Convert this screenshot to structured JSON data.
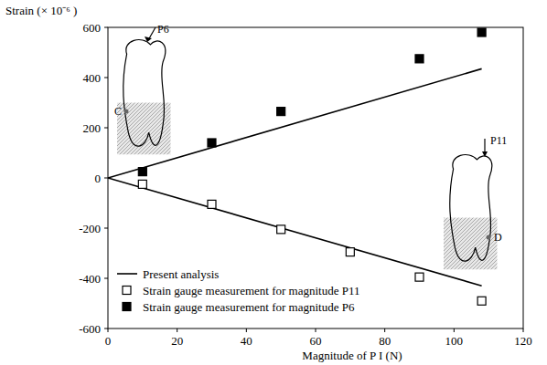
{
  "chart_data": {
    "type": "scatter",
    "y_label": "Strain (× 10⁻⁶ )",
    "x_label": "Magnitude of P I (N)",
    "xlim": [
      0,
      120
    ],
    "xticks": [
      0,
      20,
      40,
      60,
      80,
      100,
      120
    ],
    "ylim": [
      -600,
      600
    ],
    "yticks": [
      -600,
      -400,
      -200,
      0,
      200,
      400,
      600
    ],
    "grid": false,
    "legend": "lower left",
    "annotations": [
      "P6",
      "C",
      "P11",
      "D"
    ],
    "series": [
      {
        "name": "Present analysis",
        "type": "line",
        "color": "#000000",
        "line_style": "solid",
        "x": [
          0,
          108
        ],
        "values": [
          0,
          435
        ]
      },
      {
        "type": "line",
        "color": "#000000",
        "line_style": "solid",
        "x": [
          0,
          108
        ],
        "values": [
          0,
          -430
        ]
      },
      {
        "name": "Strain gauge measurement for magnitude P11",
        "type": "scatter",
        "marker": "open-square",
        "color": "#000000",
        "x": [
          10,
          30,
          50,
          70,
          90,
          108
        ],
        "values": [
          -25,
          -105,
          -205,
          -295,
          -395,
          -490
        ]
      },
      {
        "name": "Strain gauge measurement for magnitude P6",
        "type": "scatter",
        "marker": "filled-square",
        "color": "#000000",
        "x": [
          10,
          30,
          50,
          90,
          108
        ],
        "values": [
          25,
          140,
          265,
          475,
          580
        ]
      }
    ]
  }
}
